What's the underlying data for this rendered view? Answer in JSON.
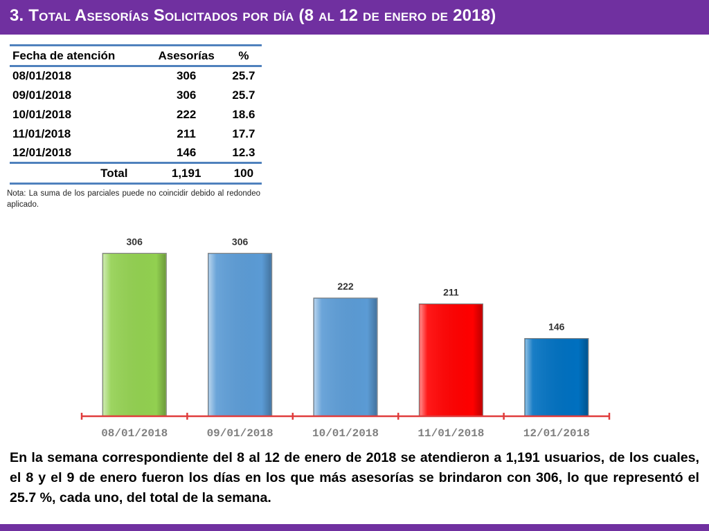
{
  "header": {
    "title": "3.  Total Asesorías Solicitados por día  (8 al 12 de enero de 2018)"
  },
  "table": {
    "headers": [
      "Fecha de atención",
      "Asesorías",
      "%"
    ],
    "rows": [
      [
        "08/01/2018",
        "306",
        "25.7"
      ],
      [
        "09/01/2018",
        "306",
        "25.7"
      ],
      [
        "10/01/2018",
        "222",
        "18.6"
      ],
      [
        "11/01/2018",
        "211",
        "17.7"
      ],
      [
        "12/01/2018",
        "146",
        "12.3"
      ]
    ],
    "total": [
      "Total",
      "1,191",
      "100"
    ]
  },
  "note": "Nota: La suma de los parciales puede no coincidir debido al redondeo aplicado.",
  "chart_data": {
    "type": "bar",
    "categories": [
      "08/01/2018",
      "09/01/2018",
      "10/01/2018",
      "11/01/2018",
      "12/01/2018"
    ],
    "values": [
      306,
      306,
      222,
      211,
      146
    ],
    "bar_colors": [
      "#92d050",
      "#5b9bd5",
      "#5b9bd5",
      "#ff0000",
      "#0070c0"
    ],
    "axis_color": "#e03c3c",
    "data_labels": true,
    "grid": false,
    "title": "",
    "xlabel": "",
    "ylabel": ""
  },
  "summary": "En la semana correspondiente del 8 al 12 de enero de 2018 se atendieron a 1,191 usuarios, de los cuales, el 8 y el 9 de enero fueron los días en los que más asesorías se brindaron con 306, lo que representó el 25.7 %, cada uno, del total de la semana.",
  "colors": {
    "header_bg": "#7030a0",
    "table_rule": "#4f81bd"
  }
}
